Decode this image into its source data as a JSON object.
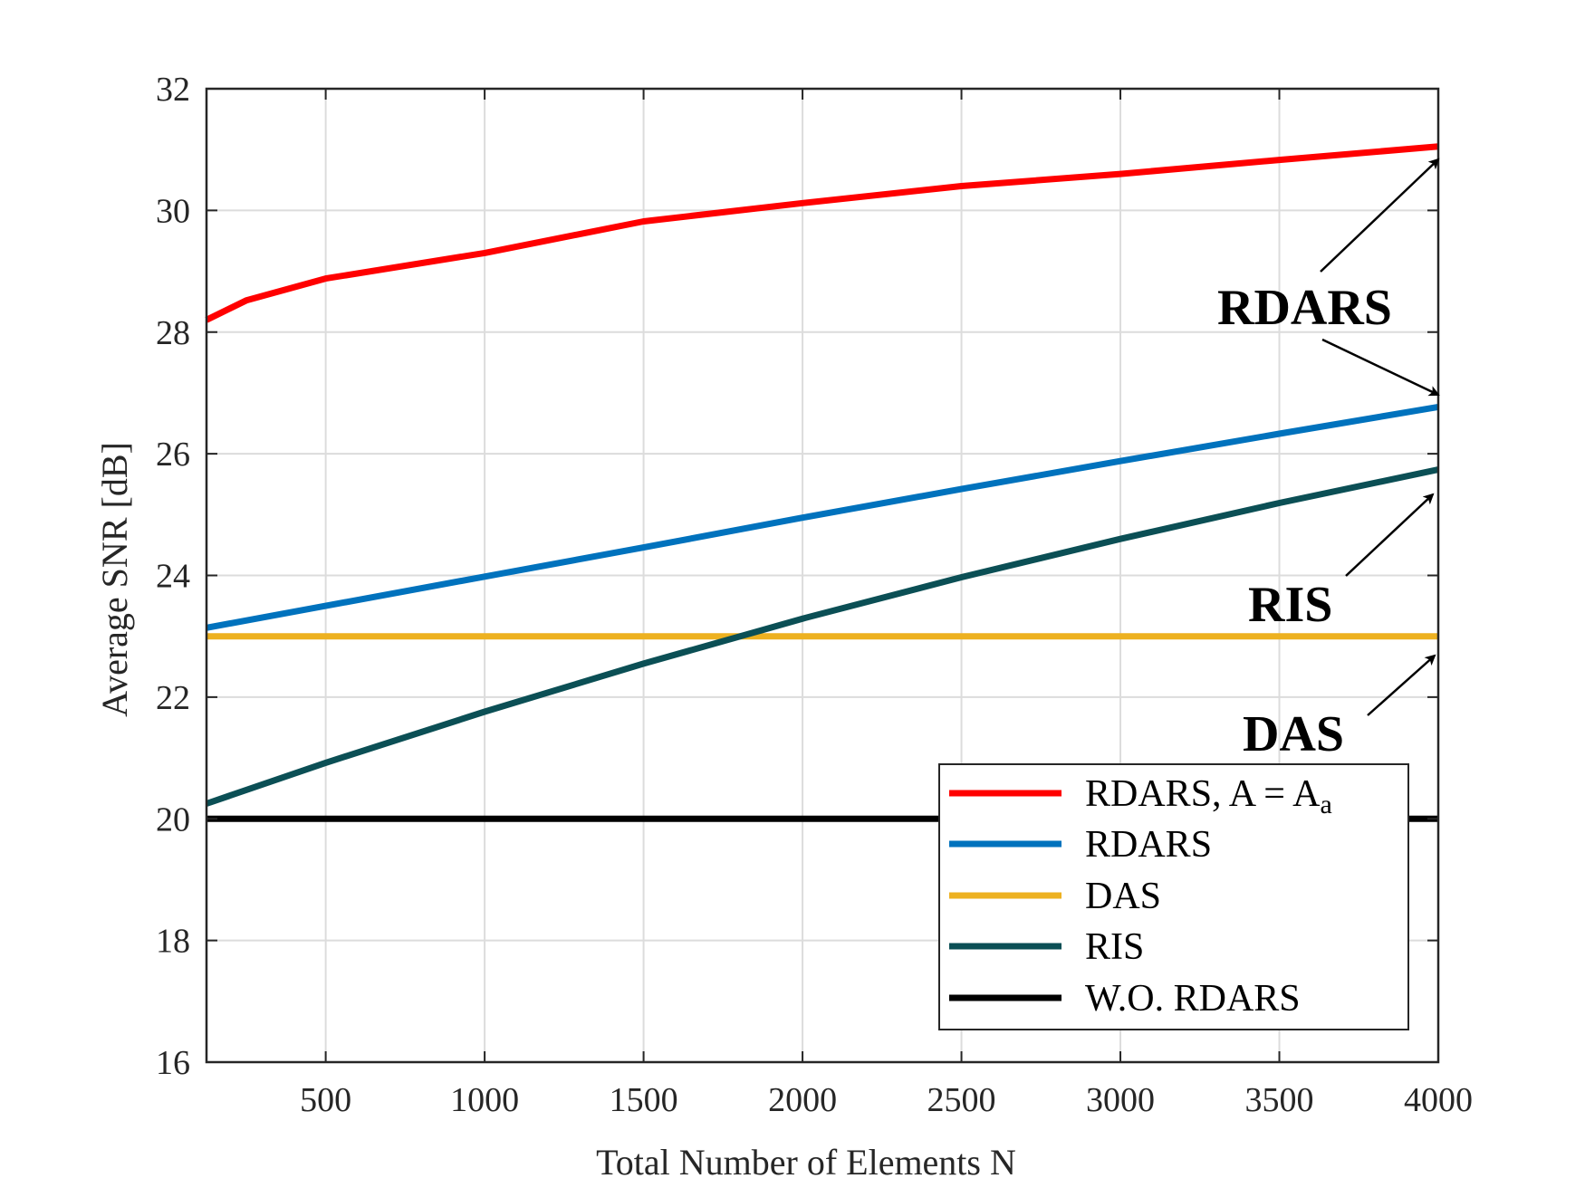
{
  "chart_data": {
    "type": "line",
    "xlabel": "Total Number of Elements N",
    "ylabel": "Average SNR [dB]",
    "xlim": [
      125,
      4000
    ],
    "ylim": [
      16,
      32
    ],
    "xticks": [
      500,
      1000,
      1500,
      2000,
      2500,
      3000,
      3500,
      4000
    ],
    "yticks": [
      16,
      18,
      20,
      22,
      24,
      26,
      28,
      30,
      32
    ],
    "grid": true,
    "legend_position": "bottom-right",
    "series": [
      {
        "name": "RDARS,  A = A",
        "name_subscript": "a",
        "color": "#ff0000",
        "x": [
          125,
          250,
          500,
          1000,
          1500,
          2000,
          2500,
          3000,
          3500,
          4000
        ],
        "y": [
          28.2,
          28.52,
          28.88,
          29.3,
          29.82,
          30.12,
          30.4,
          30.6,
          30.83,
          31.05
        ]
      },
      {
        "name": "RDARS",
        "color": "#0072bd",
        "x": [
          125,
          500,
          1000,
          1500,
          2000,
          2500,
          3000,
          3500,
          4000
        ],
        "y": [
          23.14,
          23.5,
          23.98,
          24.46,
          24.95,
          25.42,
          25.88,
          26.33,
          26.77
        ]
      },
      {
        "name": "DAS",
        "color": "#edb120",
        "x": [
          125,
          4000
        ],
        "y": [
          23.0,
          23.0
        ]
      },
      {
        "name": "RIS",
        "color": "#0b4f55",
        "x": [
          125,
          500,
          1000,
          1500,
          2000,
          2500,
          3000,
          3500,
          4000
        ],
        "y": [
          20.25,
          20.92,
          21.76,
          22.55,
          23.29,
          23.97,
          24.6,
          25.19,
          25.74
        ]
      },
      {
        "name": "W.O. RDARS",
        "color": "#000000",
        "x": [
          125,
          4000
        ],
        "y": [
          20.0,
          20.0
        ]
      }
    ],
    "annotations": [
      {
        "text": "RDARS"
      },
      {
        "text": "RIS"
      },
      {
        "text": "DAS"
      }
    ]
  }
}
